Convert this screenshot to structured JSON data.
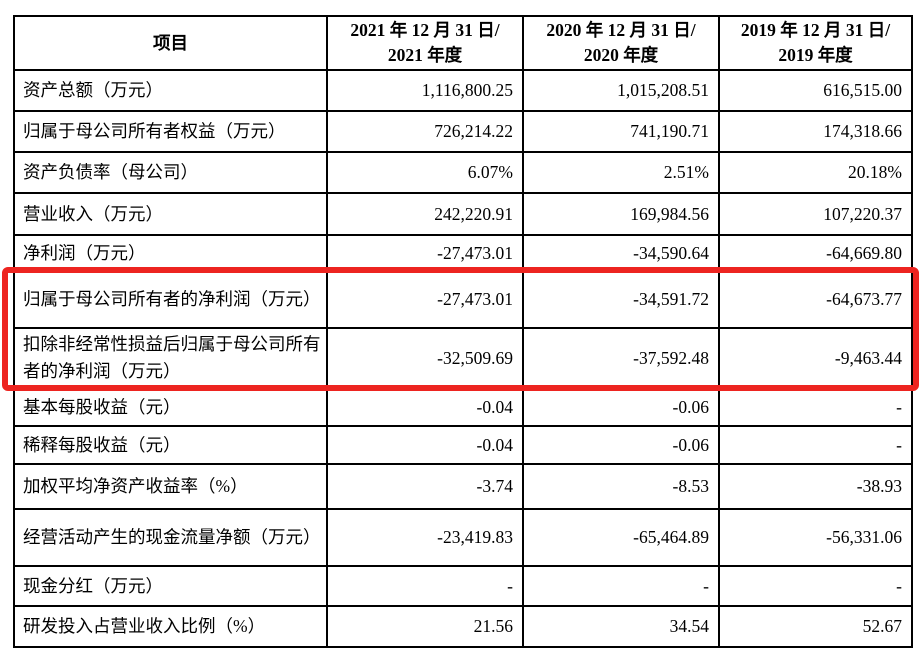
{
  "highlight": {
    "color": "#ed2420",
    "shape": "rectangle-outline"
  },
  "table": {
    "headers": {
      "item": "项目",
      "periods": [
        {
          "line1": "2021 年 12 月 31 日/",
          "line2": "2021 年度"
        },
        {
          "line1": "2020 年 12 月 31 日/",
          "line2": "2020 年度"
        },
        {
          "line1": "2019 年 12 月 31 日/",
          "line2": "2019 年度"
        }
      ]
    },
    "rows": [
      {
        "label": "资产总额（万元）",
        "values": [
          "1,116,800.25",
          "1,015,208.51",
          "616,515.00"
        ],
        "highlighted": false
      },
      {
        "label": "归属于母公司所有者权益（万元）",
        "values": [
          "726,214.22",
          "741,190.71",
          "174,318.66"
        ],
        "highlighted": false
      },
      {
        "label": "资产负债率（母公司）",
        "values": [
          "6.07%",
          "2.51%",
          "20.18%"
        ],
        "highlighted": false
      },
      {
        "label": "营业收入（万元）",
        "values": [
          "242,220.91",
          "169,984.56",
          "107,220.37"
        ],
        "highlighted": false
      },
      {
        "label": "净利润（万元）",
        "values": [
          "-27,473.01",
          "-34,590.64",
          "-64,669.80"
        ],
        "highlighted": false
      },
      {
        "label": "归属于母公司所有者的净利润（万元）",
        "values": [
          "-27,473.01",
          "-34,591.72",
          "-64,673.77"
        ],
        "highlighted": true
      },
      {
        "label": "扣除非经常性损益后归属于母公司所有者的净利润（万元）",
        "values": [
          "-32,509.69",
          "-37,592.48",
          "-9,463.44"
        ],
        "highlighted": true
      },
      {
        "label": "基本每股收益（元）",
        "values": [
          "-0.04",
          "-0.06",
          "-"
        ],
        "highlighted": false
      },
      {
        "label": "稀释每股收益（元）",
        "values": [
          "-0.04",
          "-0.06",
          "-"
        ],
        "highlighted": false
      },
      {
        "label": "加权平均净资产收益率（%）",
        "values": [
          "-3.74",
          "-8.53",
          "-38.93"
        ],
        "highlighted": false
      },
      {
        "label": "经营活动产生的现金流量净额（万元）",
        "values": [
          "-23,419.83",
          "-65,464.89",
          "-56,331.06"
        ],
        "highlighted": false
      },
      {
        "label": "现金分红（万元）",
        "values": [
          "-",
          "-",
          "-"
        ],
        "highlighted": false
      },
      {
        "label": "研发投入占营业收入比例（%）",
        "values": [
          "21.56",
          "34.54",
          "52.67"
        ],
        "highlighted": false
      }
    ]
  }
}
